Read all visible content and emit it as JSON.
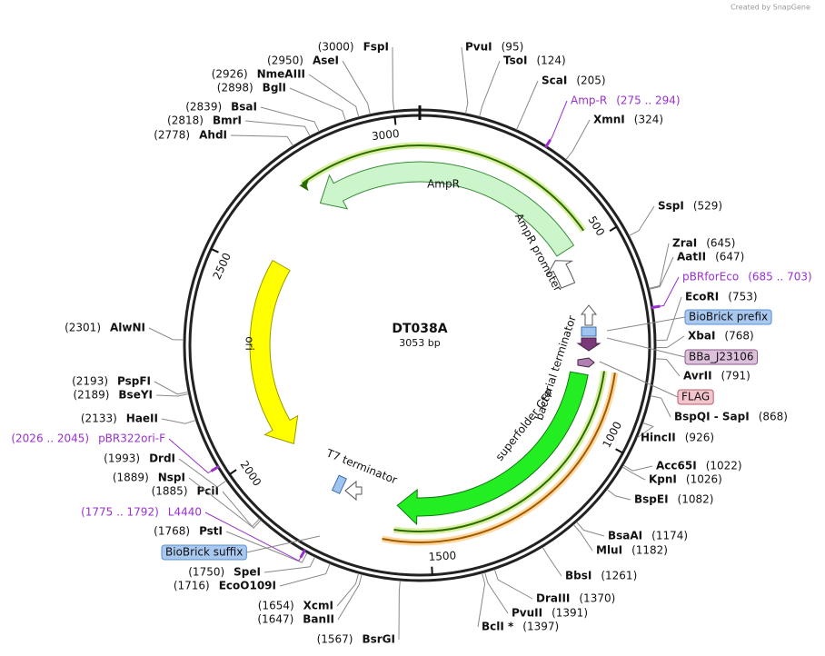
{
  "header": {
    "credit": "Created by SnapGene"
  },
  "plasmid": {
    "name": "DT038A",
    "length": "3053 bp"
  },
  "ticks": [
    "500",
    "1000",
    "1500",
    "2000",
    "2500",
    "3000"
  ],
  "sites": [
    {
      "name": "PvuI",
      "pos": "(95)"
    },
    {
      "name": "TsoI",
      "pos": "(124)"
    },
    {
      "name": "ScaI",
      "pos": "(205)"
    },
    {
      "name": "XmnI",
      "pos": "(324)"
    },
    {
      "name": "SspI",
      "pos": "(529)"
    },
    {
      "name": "ZraI",
      "pos": "(645)"
    },
    {
      "name": "AatII",
      "pos": "(647)"
    },
    {
      "name": "EcoRI",
      "pos": "(753)"
    },
    {
      "name": "XbaI",
      "pos": "(768)"
    },
    {
      "name": "AvrII",
      "pos": "(791)"
    },
    {
      "name": "BspQI  -  SapI",
      "pos": "(868)"
    },
    {
      "name": "HincII",
      "pos": "(926)"
    },
    {
      "name": "Acc65I",
      "pos": "(1022)"
    },
    {
      "name": "KpnI",
      "pos": "(1026)"
    },
    {
      "name": "BspEI",
      "pos": "(1082)"
    },
    {
      "name": "BsaAI",
      "pos": "(1174)"
    },
    {
      "name": "MluI",
      "pos": "(1182)"
    },
    {
      "name": "BbsI",
      "pos": "(1261)"
    },
    {
      "name": "DraIII",
      "pos": "(1370)"
    },
    {
      "name": "PvuII",
      "pos": "(1391)"
    },
    {
      "name": "BclI *",
      "pos": "(1397)"
    },
    {
      "name": "BsrGI",
      "pos": "(1567)"
    },
    {
      "name": "BanII",
      "pos": "(1647)"
    },
    {
      "name": "XcmI",
      "pos": "(1654)"
    },
    {
      "name": "EcoO109I",
      "pos": "(1716)"
    },
    {
      "name": "SpeI",
      "pos": "(1750)"
    },
    {
      "name": "PstI",
      "pos": "(1768)"
    },
    {
      "name": "PciI",
      "pos": "(1885)"
    },
    {
      "name": "NspI",
      "pos": "(1889)"
    },
    {
      "name": "DrdI",
      "pos": "(1993)"
    },
    {
      "name": "HaeII",
      "pos": "(2133)"
    },
    {
      "name": "BseYI",
      "pos": "(2189)"
    },
    {
      "name": "PspFI",
      "pos": "(2193)"
    },
    {
      "name": "AlwNI",
      "pos": "(2301)"
    },
    {
      "name": "AhdI",
      "pos": "(2778)"
    },
    {
      "name": "BmrI",
      "pos": "(2818)"
    },
    {
      "name": "BsaI",
      "pos": "(2839)"
    },
    {
      "name": "BglI",
      "pos": "(2898)"
    },
    {
      "name": "NmeAIII",
      "pos": "(2926)"
    },
    {
      "name": "AseI",
      "pos": "(2950)"
    },
    {
      "name": "FspI",
      "pos": "(3000)"
    }
  ],
  "primers": [
    {
      "name": "Amp-R",
      "range": "(275 .. 294)"
    },
    {
      "name": "pBRforEco",
      "range": "(685 .. 703)"
    },
    {
      "name": "pBR322ori-F",
      "range": "(2026 .. 2045)"
    },
    {
      "name": "L4440",
      "range": "(1775 .. 1792)"
    }
  ],
  "boxed": [
    {
      "name": "BioBrick prefix"
    },
    {
      "name": "BBa_J23106"
    },
    {
      "name": "FLAG"
    },
    {
      "name": "BioBrick suffix"
    }
  ],
  "features": [
    {
      "name": "AmpR"
    },
    {
      "name": "AmpR promoter"
    },
    {
      "name": "ori"
    },
    {
      "name": "superfolder GFP"
    },
    {
      "name": "T7 terminator"
    },
    {
      "name": "bacterial terminator"
    }
  ]
}
